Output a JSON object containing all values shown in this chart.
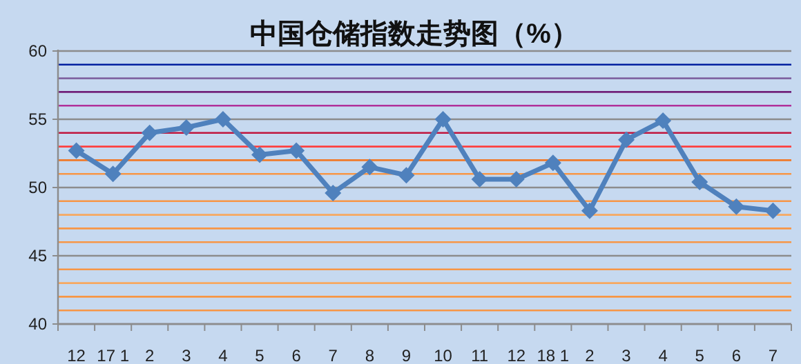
{
  "chart_data": {
    "type": "line",
    "title": "中国仓储指数走势图（%）",
    "categories": [
      "12",
      "17 1",
      "2",
      "3",
      "4",
      "5",
      "6",
      "7",
      "8",
      "9",
      "10",
      "11",
      "12",
      "18 1",
      "2",
      "3",
      "4",
      "5",
      "6",
      "7"
    ],
    "series": [
      {
        "color": "#4f81bd",
        "values": [
          52.7,
          51.0,
          54.0,
          54.4,
          55.0,
          52.4,
          52.7,
          49.6,
          51.5,
          50.9,
          55.0,
          50.6,
          50.6,
          51.8,
          48.3,
          53.5,
          54.9,
          50.4,
          48.6,
          48.3
        ]
      }
    ],
    "ylim": [
      40,
      60
    ],
    "yticks": [
      40,
      45,
      50,
      55,
      60
    ],
    "grid": "y",
    "marker": "diamond",
    "line_style": "solid",
    "ref_lines": [
      {
        "axis": "y",
        "value": 41,
        "color": "#f79646"
      },
      {
        "axis": "y",
        "value": 42,
        "color": "#f79646"
      },
      {
        "axis": "y",
        "value": 43,
        "color": "#f7a860"
      },
      {
        "axis": "y",
        "value": 44,
        "color": "#f79646"
      },
      {
        "axis": "y",
        "value": 46,
        "color": "#f79646"
      },
      {
        "axis": "y",
        "value": 47,
        "color": "#f79646"
      },
      {
        "axis": "y",
        "value": 48,
        "color": "#f7a860"
      },
      {
        "axis": "y",
        "value": 49,
        "color": "#f79646"
      },
      {
        "axis": "y",
        "value": 51,
        "color": "#f79646"
      },
      {
        "axis": "y",
        "value": 52,
        "color": "#f07828"
      },
      {
        "axis": "y",
        "value": 53,
        "color": "#ff4040"
      },
      {
        "axis": "y",
        "value": 54,
        "color": "#c0143c"
      },
      {
        "axis": "y",
        "value": 56,
        "color": "#b0309a"
      },
      {
        "axis": "y",
        "value": 57,
        "color": "#70207a"
      },
      {
        "axis": "y",
        "value": 58,
        "color": "#8064a2"
      },
      {
        "axis": "y",
        "value": 59,
        "color": "#0020a0"
      }
    ]
  }
}
